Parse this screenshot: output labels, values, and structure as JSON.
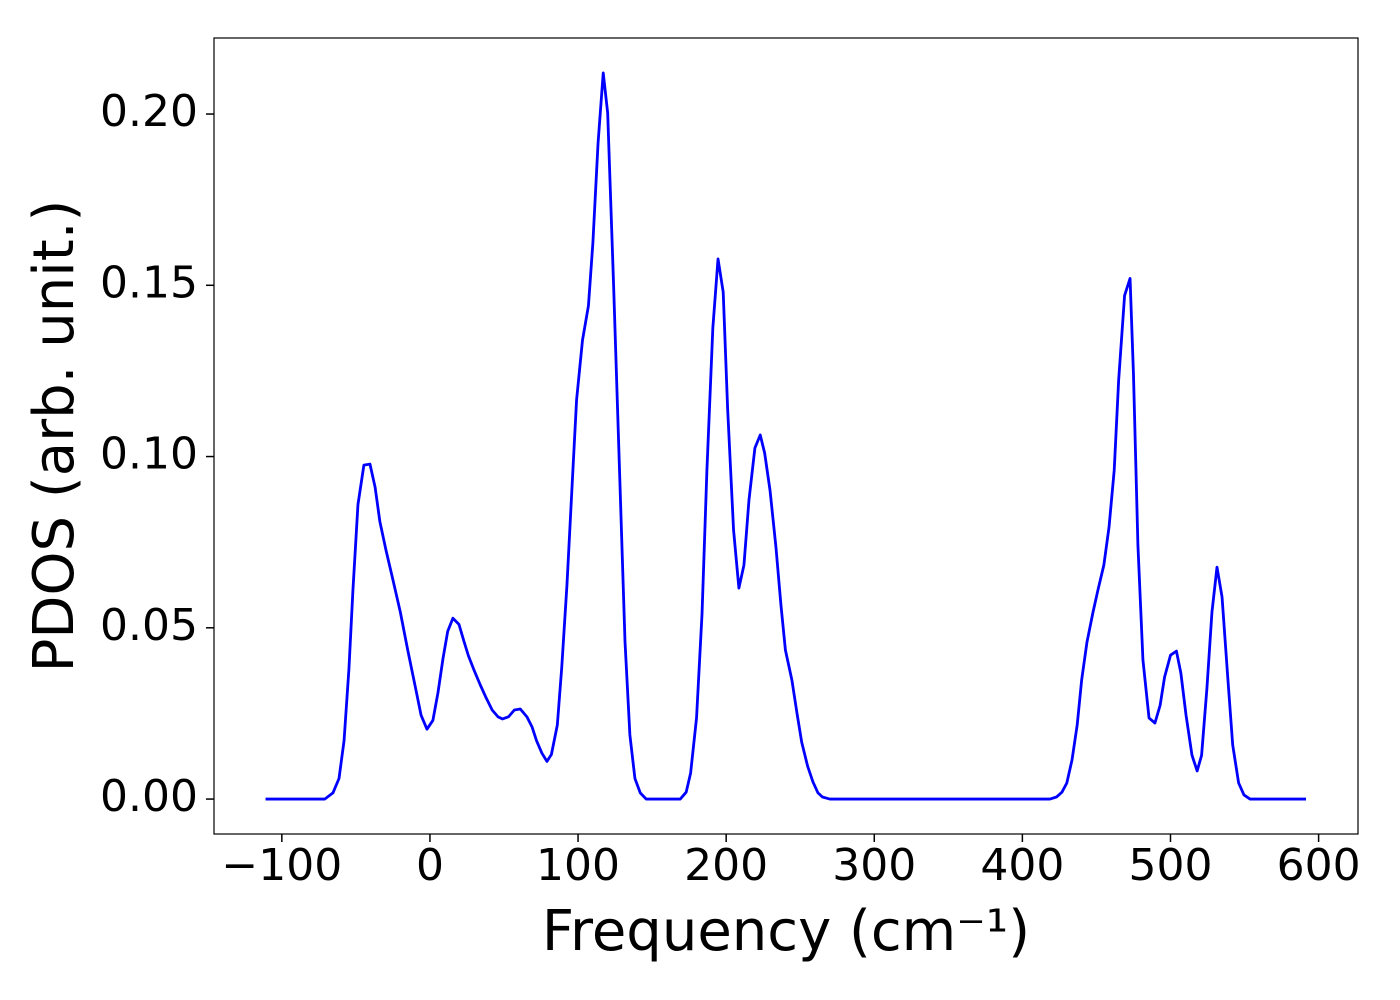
{
  "chart_data": {
    "type": "line",
    "xlabel": "Frequency (cm⁻¹)",
    "ylabel": "PDOS (arb. unit.)",
    "xlim": [
      -145.8,
      626.6
    ],
    "ylim": [
      -0.0102,
      0.2222
    ],
    "xticks": [
      {
        "value": -100,
        "label": "−100"
      },
      0,
      100,
      200,
      300,
      400,
      500,
      600
    ],
    "yticks": [
      {
        "value": 0,
        "label": "0.00"
      },
      {
        "value": 0.05,
        "label": "0.05"
      },
      {
        "value": 0.1,
        "label": "0.10"
      },
      {
        "value": 0.15,
        "label": "0.15"
      },
      {
        "value": 0.2,
        "label": "0.20"
      }
    ],
    "grid": false,
    "series": [
      {
        "color": "#0000ff",
        "x": [
          -111,
          -71,
          -65.5,
          -61.4,
          -58,
          -54.7,
          -52,
          -48.6,
          -44.6,
          -40.5,
          -37,
          -33.8,
          -29.7,
          -25,
          -20,
          -15,
          -10,
          -6,
          -2,
          2,
          5.4,
          8.8,
          12,
          15.5,
          19.6,
          23,
          26,
          30,
          34,
          38,
          42,
          46,
          49,
          53,
          57,
          61,
          65.5,
          69,
          72,
          75.6,
          79,
          82,
          86,
          89,
          92.5,
          96,
          99,
          103,
          107,
          110,
          113.5,
          117,
          120,
          124,
          128,
          131.7,
          135,
          138.4,
          142,
          146,
          169,
          173,
          176,
          180,
          183.7,
          187,
          191,
          194.5,
          198,
          201,
          205,
          208.6,
          212,
          215.4,
          219.4,
          223,
          226,
          229.6,
          233.6,
          237,
          240,
          244.4,
          247.8,
          251,
          255,
          258.6,
          262,
          265,
          270,
          418.6,
          423,
          426.7,
          430,
          433.5,
          437,
          440,
          443.6,
          447.7,
          451,
          455,
          458.5,
          462,
          465,
          469,
          472.7,
          475,
          478,
          481.4,
          485.5,
          489.5,
          493,
          496,
          500,
          504,
          507,
          510.5,
          514.5,
          518,
          521,
          524.6,
          528,
          531.4,
          534.8,
          538.8,
          542,
          546,
          549.6,
          553.7,
          591.5
        ],
        "values": [
          0,
          0,
          0.0018,
          0.006,
          0.017,
          0.038,
          0.061,
          0.086,
          0.0975,
          0.0978,
          0.091,
          0.081,
          0.0727,
          0.064,
          0.0546,
          0.0435,
          0.033,
          0.0245,
          0.0204,
          0.023,
          0.031,
          0.041,
          0.049,
          0.0528,
          0.051,
          0.046,
          0.0418,
          0.0374,
          0.0333,
          0.0295,
          0.026,
          0.024,
          0.0234,
          0.024,
          0.026,
          0.0263,
          0.024,
          0.021,
          0.017,
          0.0134,
          0.011,
          0.013,
          0.0216,
          0.0385,
          0.0625,
          0.0917,
          0.1165,
          0.134,
          0.144,
          0.1623,
          0.1915,
          0.212,
          0.2003,
          0.15,
          0.096,
          0.046,
          0.0187,
          0.006,
          0.0018,
          0,
          0,
          0.002,
          0.0076,
          0.0237,
          0.054,
          0.096,
          0.1375,
          0.1577,
          0.148,
          0.1139,
          0.0785,
          0.0616,
          0.0683,
          0.0873,
          0.1025,
          0.1063,
          0.101,
          0.0902,
          0.0736,
          0.0566,
          0.0435,
          0.0347,
          0.0251,
          0.0166,
          0.0096,
          0.005,
          0.0018,
          0.0006,
          0,
          0,
          0.0006,
          0.002,
          0.0047,
          0.0114,
          0.0216,
          0.0347,
          0.0458,
          0.0546,
          0.061,
          0.0683,
          0.0794,
          0.096,
          0.1223,
          0.147,
          0.152,
          0.124,
          0.0742,
          0.0406,
          0.0237,
          0.0222,
          0.0274,
          0.0356,
          0.042,
          0.0432,
          0.0368,
          0.0245,
          0.0128,
          0.0082,
          0.0128,
          0.0324,
          0.0546,
          0.0677,
          0.059,
          0.0347,
          0.0158,
          0.0047,
          0.0012,
          0,
          0
        ]
      }
    ]
  }
}
